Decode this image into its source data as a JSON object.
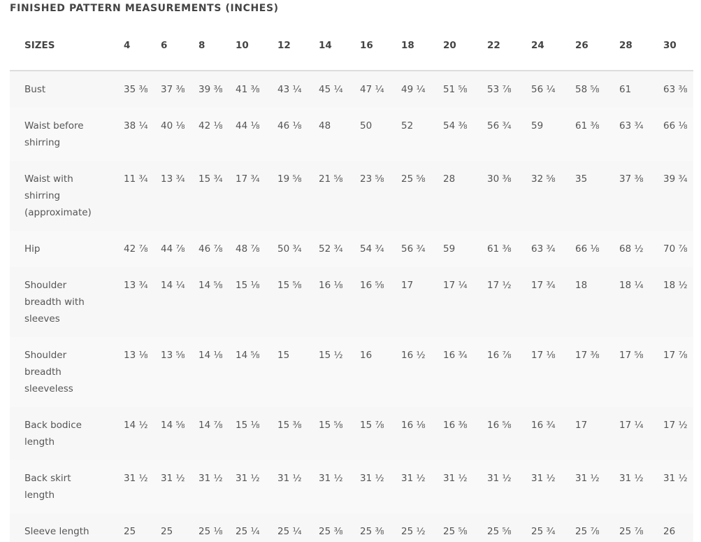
{
  "title": "FINISHED PATTERN MEASUREMENTS (INCHES)",
  "table": {
    "headers": [
      "SIZES",
      "4",
      "6",
      "8",
      "10",
      "12",
      "14",
      "16",
      "18",
      "20",
      "22",
      "24",
      "26",
      "28",
      "30"
    ],
    "rows": [
      [
        "Bust",
        "35 ⅜",
        "37 ⅜",
        "39 ⅜",
        "41 ⅜",
        "43 ¼",
        "45 ¼",
        "47 ¼",
        "49 ¼",
        "51 ⅝",
        "53 ⅞",
        "56 ¼",
        "58 ⅝",
        "61",
        "63 ⅜"
      ],
      [
        "Waist before shirring",
        "38 ¼",
        "40 ⅛",
        "42 ⅛",
        "44 ⅛",
        "46 ⅛",
        "48",
        "50",
        "52",
        "54 ⅜",
        "56 ¾",
        "59",
        "61 ⅜",
        "63 ¾",
        "66 ⅛"
      ],
      [
        "Waist with shirring (approximate)",
        "11 ¾",
        "13 ¾",
        "15 ¾",
        "17 ¾",
        "19 ⅝",
        "21 ⅝",
        "23 ⅝",
        "25 ⅝",
        "28",
        "30 ⅜",
        "32 ⅝",
        "35",
        "37 ⅜",
        "39 ¾"
      ],
      [
        "Hip",
        "42 ⅞",
        "44 ⅞",
        "46 ⅞",
        "48 ⅞",
        "50 ¾",
        "52 ¾",
        "54 ¾",
        "56 ¾",
        "59",
        "61 ⅜",
        "63 ¾",
        "66 ⅛",
        "68 ½",
        "70 ⅞"
      ],
      [
        "Shoulder breadth with sleeves",
        "13 ¾",
        "14 ¼",
        "14 ⅝",
        "15 ⅛",
        "15 ⅝",
        "16 ⅛",
        "16 ⅝",
        "17",
        "17 ¼",
        "17 ½",
        "17 ¾",
        "18",
        "18 ¼",
        "18 ½"
      ],
      [
        "Shoulder breadth sleeveless",
        "13 ⅛",
        "13 ⅝",
        "14 ⅛",
        "14 ⅝",
        "15",
        "15 ½",
        "16",
        "16 ½",
        "16 ¾",
        "16 ⅞",
        "17 ⅛",
        "17 ⅜",
        "17 ⅝",
        "17 ⅞"
      ],
      [
        "Back bodice length",
        "14 ½",
        "14 ⅝",
        "14 ⅞",
        "15 ⅛",
        "15 ⅜",
        "15 ⅝",
        "15 ⅞",
        "16 ⅛",
        "16 ⅜",
        "16 ⅝",
        "16 ¾",
        "17",
        "17 ¼",
        "17 ½"
      ],
      [
        "Back skirt length",
        "31 ½",
        "31 ½",
        "31 ½",
        "31 ½",
        "31 ½",
        "31 ½",
        "31 ½",
        "31 ½",
        "31 ½",
        "31 ½",
        "31 ½",
        "31 ½",
        "31 ½",
        "31 ½"
      ],
      [
        "Sleeve length",
        "25",
        "25",
        "25 ⅛",
        "25 ¼",
        "25 ¼",
        "25 ⅜",
        "25 ⅜",
        "25 ½",
        "25 ⅝",
        "25 ⅝",
        "25 ¾",
        "25 ⅞",
        "25 ⅞",
        "26"
      ]
    ]
  }
}
